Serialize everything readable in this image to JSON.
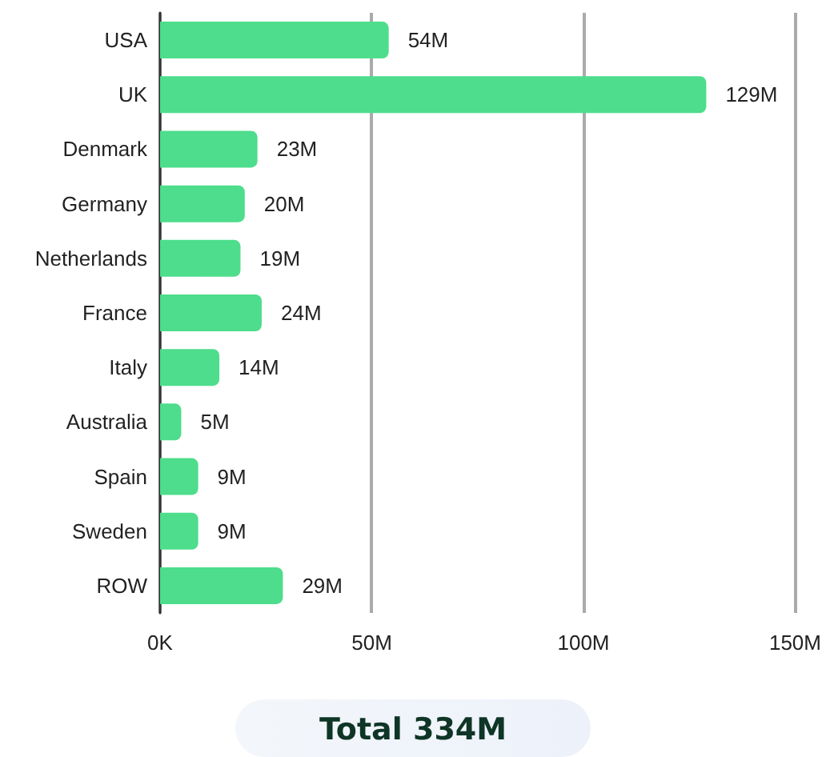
{
  "chart_data": {
    "type": "bar",
    "orientation": "horizontal",
    "categories": [
      "USA",
      "UK",
      "Denmark",
      "Germany",
      "Netherlands",
      "France",
      "Italy",
      "Australia",
      "Spain",
      "Sweden",
      "ROW"
    ],
    "values": [
      54,
      129,
      23,
      20,
      19,
      24,
      14,
      5,
      9,
      9,
      29
    ],
    "value_labels": [
      "54M",
      "129M",
      "23M",
      "20M",
      "19M",
      "24M",
      "14M",
      "5M",
      "9M",
      "9M",
      "29M"
    ],
    "color": "#4ddd8c",
    "xlim": [
      0,
      150
    ],
    "xticks": [
      {
        "value": 0,
        "label": "0K"
      },
      {
        "value": 50,
        "label": "50M"
      },
      {
        "value": 100,
        "label": "100M"
      },
      {
        "value": 150,
        "label": "150M"
      }
    ],
    "grid": "x",
    "annotations": [
      "Total 334M"
    ]
  }
}
